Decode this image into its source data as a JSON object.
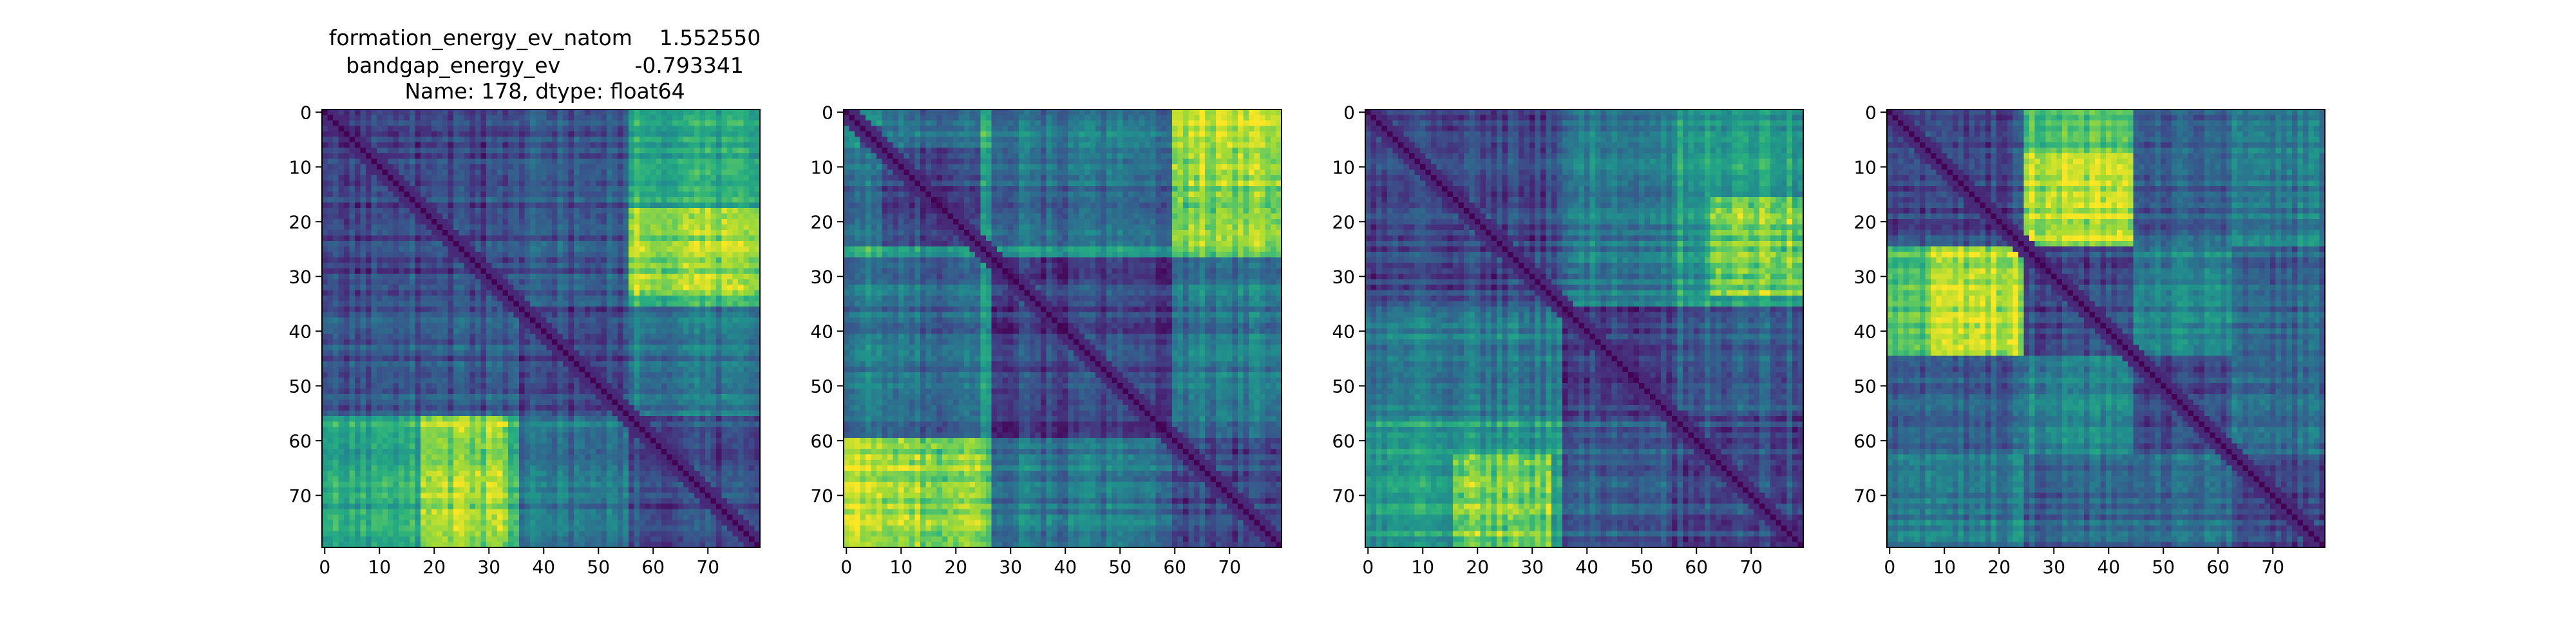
{
  "figure": {
    "title_lines": [
      "formation_energy_ev_natom    1.552550",
      "bandgap_energy_ev           -0.793341",
      "Name: 178, dtype: float64"
    ]
  },
  "chart_data": [
    {
      "type": "heatmap",
      "size": 80,
      "colormap": "viridis",
      "value_range": [
        0,
        1
      ],
      "xticks": [
        0,
        10,
        20,
        30,
        40,
        50,
        60,
        70
      ],
      "yticks": [
        0,
        10,
        20,
        30,
        40,
        50,
        60,
        70
      ],
      "block_boundaries": [
        0,
        36,
        56,
        80
      ],
      "block_values": [
        [
          0.22,
          0.28,
          0.62
        ],
        [
          0.28,
          0.22,
          0.4
        ],
        [
          0.62,
          0.4,
          0.24
        ]
      ],
      "hot_spot": {
        "rows": [
          56,
          80
        ],
        "cols": [
          18,
          34
        ],
        "boost": 0.28
      },
      "seed": 178
    },
    {
      "type": "heatmap",
      "size": 80,
      "colormap": "viridis",
      "value_range": [
        0,
        1
      ],
      "xticks": [
        0,
        10,
        20,
        30,
        40,
        50,
        60,
        70
      ],
      "yticks": [
        0,
        10,
        20,
        30,
        40,
        50,
        60,
        70
      ],
      "block_boundaries": [
        0,
        3,
        7,
        25,
        27,
        60,
        80
      ],
      "block_values": [
        [
          0.3,
          0.55,
          0.35,
          0.6,
          0.35,
          0.92
        ],
        [
          0.55,
          0.25,
          0.4,
          0.7,
          0.45,
          0.7
        ],
        [
          0.35,
          0.4,
          0.2,
          0.55,
          0.35,
          0.62
        ],
        [
          0.6,
          0.7,
          0.55,
          0.25,
          0.55,
          0.75
        ],
        [
          0.35,
          0.45,
          0.35,
          0.55,
          0.2,
          0.4
        ],
        [
          0.92,
          0.7,
          0.62,
          0.75,
          0.4,
          0.22
        ]
      ],
      "hot_spot": {
        "rows": [
          60,
          80
        ],
        "cols": [
          3,
          25
        ],
        "boost": 0.25
      },
      "seed": 311
    },
    {
      "type": "heatmap",
      "size": 80,
      "colormap": "viridis",
      "value_range": [
        0,
        1
      ],
      "xticks": [
        0,
        10,
        20,
        30,
        40,
        50,
        60,
        70
      ],
      "yticks": [
        0,
        10,
        20,
        30,
        40,
        50,
        60,
        70
      ],
      "block_boundaries": [
        0,
        36,
        56,
        80
      ],
      "block_values": [
        [
          0.22,
          0.42,
          0.55
        ],
        [
          0.42,
          0.2,
          0.3
        ],
        [
          0.55,
          0.3,
          0.22
        ]
      ],
      "hot_spot": {
        "rows": [
          63,
          80
        ],
        "cols": [
          16,
          34
        ],
        "boost": 0.3
      },
      "seed": 527
    },
    {
      "type": "heatmap",
      "size": 80,
      "colormap": "viridis",
      "value_range": [
        0,
        1
      ],
      "xticks": [
        0,
        10,
        20,
        30,
        40,
        50,
        60,
        70
      ],
      "yticks": [
        0,
        10,
        20,
        30,
        40,
        50,
        60,
        70
      ],
      "block_boundaries": [
        0,
        25,
        45,
        63,
        80
      ],
      "block_values": [
        [
          0.22,
          0.72,
          0.3,
          0.42
        ],
        [
          0.72,
          0.22,
          0.45,
          0.32
        ],
        [
          0.3,
          0.45,
          0.22,
          0.35
        ],
        [
          0.42,
          0.32,
          0.35,
          0.22
        ]
      ],
      "hot_spot": {
        "rows": [
          25,
          45
        ],
        "cols": [
          8,
          24
        ],
        "boost": 0.22
      },
      "seed": 749
    }
  ]
}
